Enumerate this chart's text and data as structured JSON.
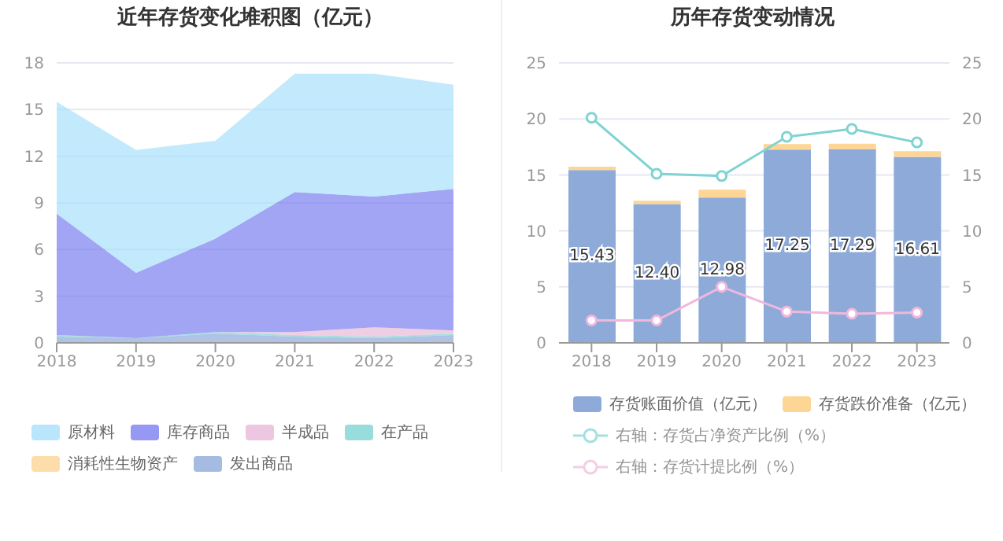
{
  "chart_data": [
    {
      "type": "area",
      "title": "近年存货变化堆积图（亿元）",
      "stacked": true,
      "categories": [
        "2018",
        "2019",
        "2020",
        "2021",
        "2022",
        "2023"
      ],
      "ylim": [
        0,
        18
      ],
      "yticks": [
        0,
        3,
        6,
        9,
        12,
        15,
        18
      ],
      "grid": "y",
      "legend": "bottom",
      "series": [
        {
          "name": "发出商品",
          "color": "#8eaad9",
          "values": [
            0.4,
            0.3,
            0.6,
            0.4,
            0.3,
            0.5
          ]
        },
        {
          "name": "消耗性生物资产",
          "color": "#fdd595",
          "values": [
            null,
            null,
            null,
            null,
            null,
            null
          ]
        },
        {
          "name": "在产品",
          "color": "#7fd3d3",
          "values": [
            0.1,
            0,
            0.1,
            0.1,
            0.1,
            0.1
          ]
        },
        {
          "name": "半成品",
          "color": "#e8b9d9",
          "values": [
            0,
            0,
            0,
            0.2,
            0.6,
            0.2
          ]
        },
        {
          "name": "库存商品",
          "color": "#7b7ff0",
          "values": [
            7.8,
            4.2,
            6.0,
            9.0,
            8.4,
            9.1
          ]
        },
        {
          "name": "原材料",
          "color": "#a8e0fb",
          "values": [
            7.2,
            7.9,
            6.3,
            7.6,
            7.9,
            6.7
          ]
        }
      ]
    },
    {
      "type": "bar",
      "title": "历年存货变动情况",
      "stacked": true,
      "categories": [
        "2018",
        "2019",
        "2020",
        "2021",
        "2022",
        "2023"
      ],
      "ylim": [
        0,
        25
      ],
      "yticks": [
        0,
        5,
        10,
        15,
        20,
        25
      ],
      "y2lim": [
        0,
        25
      ],
      "y2ticks": [
        0,
        5,
        10,
        15,
        20,
        25
      ],
      "grid": "y",
      "legend": "bottom",
      "marker": "circle",
      "series": [
        {
          "name": "存货账面价值（亿元）",
          "color": "#8eaad9",
          "values": [
            15.43,
            12.4,
            12.98,
            17.25,
            17.29,
            16.61
          ],
          "value_labels": [
            "15.43",
            "12.40",
            "12.98",
            "17.25",
            "17.29",
            "16.61"
          ]
        },
        {
          "name": "存货跌价准备（亿元）",
          "color": "#fdd595",
          "values": [
            0.3,
            0.3,
            0.7,
            0.5,
            0.5,
            0.5
          ]
        },
        {
          "name": "右轴：存货占净资产比例（%）",
          "type": "line",
          "axis": "y2",
          "color": "#7fd3d3",
          "values": [
            20.1,
            15.1,
            14.9,
            18.4,
            19.1,
            17.9
          ]
        },
        {
          "name": "右轴：存货计提比例（%）",
          "type": "line",
          "axis": "y2",
          "color": "#f0b8dc",
          "values": [
            2.0,
            2.0,
            5.0,
            2.8,
            2.6,
            2.7
          ]
        }
      ]
    }
  ]
}
